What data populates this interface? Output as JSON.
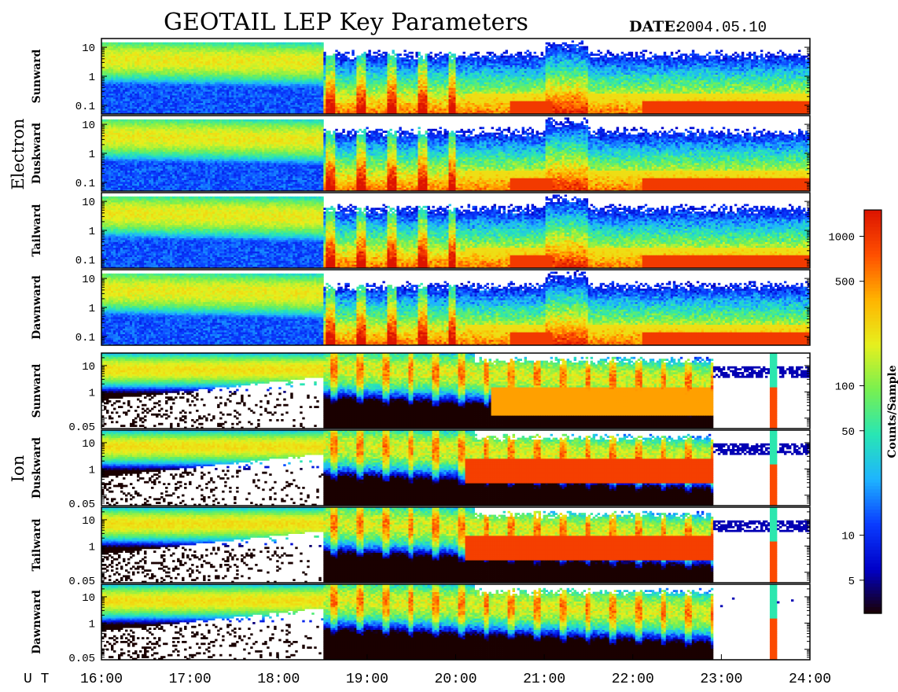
{
  "header": {
    "title": "GEOTAIL LEP Key Parameters",
    "date_label": "DATE:",
    "date_value": "2004.05.10"
  },
  "groups": {
    "electron": "Electron",
    "ion": "Ion"
  },
  "chart_data": {
    "type": "heatmap",
    "title": "GEOTAIL LEP Key Parameters",
    "date": "2004.05.10",
    "x_axis": {
      "label": "U T",
      "range": [
        "16:00",
        "24:00"
      ],
      "ticks": [
        "16:00",
        "17:00",
        "18:00",
        "19:00",
        "20:00",
        "21:00",
        "22:00",
        "23:00",
        "24:00"
      ]
    },
    "panels": [
      {
        "group": "Electron",
        "label": "Sunward",
        "y_scale": "log",
        "y_range": [
          0.05,
          20
        ],
        "y_ticks": [
          "10",
          "1",
          "0.1"
        ]
      },
      {
        "group": "Electron",
        "label": "Duskward",
        "y_scale": "log",
        "y_range": [
          0.05,
          20
        ],
        "y_ticks": [
          "10",
          "1",
          "0.1"
        ]
      },
      {
        "group": "Electron",
        "label": "Tailward",
        "y_scale": "log",
        "y_range": [
          0.05,
          20
        ],
        "y_ticks": [
          "10",
          "1",
          "0.1"
        ]
      },
      {
        "group": "Electron",
        "label": "Dawnward",
        "y_scale": "log",
        "y_range": [
          0.05,
          20
        ],
        "y_ticks": [
          "10",
          "1",
          "0.1"
        ]
      },
      {
        "group": "Ion",
        "label": "Sunward",
        "y_scale": "log",
        "y_range": [
          0.04,
          30
        ],
        "y_ticks": [
          "10",
          "1",
          "0.05"
        ]
      },
      {
        "group": "Ion",
        "label": "Duskward",
        "y_scale": "log",
        "y_range": [
          0.04,
          30
        ],
        "y_ticks": [
          "10",
          "1",
          "0.05"
        ]
      },
      {
        "group": "Ion",
        "label": "Tailward",
        "y_scale": "log",
        "y_range": [
          0.04,
          30
        ],
        "y_ticks": [
          "10",
          "1",
          "0.05"
        ]
      },
      {
        "group": "Ion",
        "label": "Dawnward",
        "y_scale": "log",
        "y_range": [
          0.04,
          30
        ],
        "y_ticks": [
          "10",
          "1",
          "0.05"
        ]
      }
    ],
    "colorbar": {
      "label": "Counts/Sample",
      "scale": "log",
      "range": [
        3,
        1500
      ],
      "ticks": [
        1000,
        500,
        100,
        50,
        10,
        5
      ],
      "tick_labels": [
        "1000",
        "500",
        "100",
        "50",
        "10",
        "5"
      ],
      "colormap": [
        "#1a0000",
        "#0000c8",
        "#0a3cff",
        "#1eb4ff",
        "#28e6b4",
        "#78f050",
        "#e6f01e",
        "#ffb400",
        "#ff5000",
        "#dc1400"
      ]
    },
    "features": {
      "boundary_crossing_ut": "18:30",
      "ion_dropout_ut": [
        "23:00",
        "24:00"
      ]
    }
  }
}
